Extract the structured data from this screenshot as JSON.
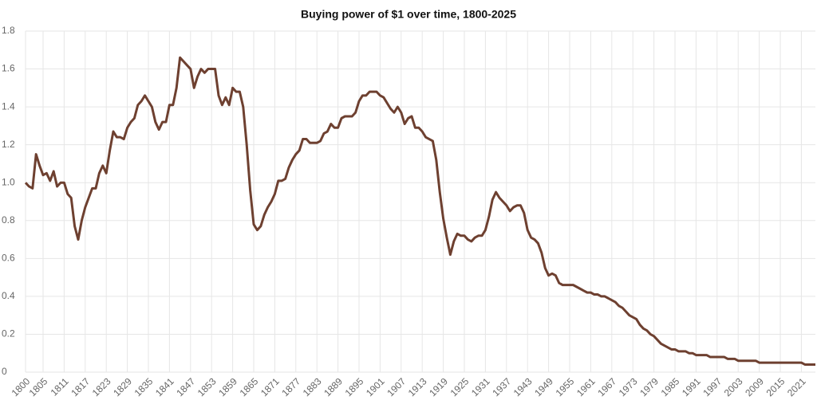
{
  "chart_data": {
    "type": "line",
    "title": "Buying power of $1 over time, 1800-2025",
    "x": [
      1800,
      1801,
      1802,
      1803,
      1804,
      1805,
      1806,
      1807,
      1808,
      1809,
      1810,
      1811,
      1812,
      1813,
      1814,
      1815,
      1816,
      1817,
      1818,
      1819,
      1820,
      1821,
      1822,
      1823,
      1824,
      1825,
      1826,
      1827,
      1828,
      1829,
      1830,
      1831,
      1832,
      1833,
      1834,
      1835,
      1836,
      1837,
      1838,
      1839,
      1840,
      1841,
      1842,
      1843,
      1844,
      1845,
      1846,
      1847,
      1848,
      1849,
      1850,
      1851,
      1852,
      1853,
      1854,
      1855,
      1856,
      1857,
      1858,
      1859,
      1860,
      1861,
      1862,
      1863,
      1864,
      1865,
      1866,
      1867,
      1868,
      1869,
      1870,
      1871,
      1872,
      1873,
      1874,
      1875,
      1876,
      1877,
      1878,
      1879,
      1880,
      1881,
      1882,
      1883,
      1884,
      1885,
      1886,
      1887,
      1888,
      1889,
      1890,
      1891,
      1892,
      1893,
      1894,
      1895,
      1896,
      1897,
      1898,
      1899,
      1900,
      1901,
      1902,
      1903,
      1904,
      1905,
      1906,
      1907,
      1908,
      1909,
      1910,
      1911,
      1912,
      1913,
      1914,
      1915,
      1916,
      1917,
      1918,
      1919,
      1920,
      1921,
      1922,
      1923,
      1924,
      1925,
      1926,
      1927,
      1928,
      1929,
      1930,
      1931,
      1932,
      1933,
      1934,
      1935,
      1936,
      1937,
      1938,
      1939,
      1940,
      1941,
      1942,
      1943,
      1944,
      1945,
      1946,
      1947,
      1948,
      1949,
      1950,
      1951,
      1952,
      1953,
      1954,
      1955,
      1956,
      1957,
      1958,
      1959,
      1960,
      1961,
      1962,
      1963,
      1964,
      1965,
      1966,
      1967,
      1968,
      1969,
      1970,
      1971,
      1972,
      1973,
      1974,
      1975,
      1976,
      1977,
      1978,
      1979,
      1980,
      1981,
      1982,
      1983,
      1984,
      1985,
      1986,
      1987,
      1988,
      1989,
      1990,
      1991,
      1992,
      1993,
      1994,
      1995,
      1996,
      1997,
      1998,
      1999,
      2000,
      2001,
      2002,
      2003,
      2004,
      2005,
      2006,
      2007,
      2008,
      2009,
      2010,
      2011,
      2012,
      2013,
      2014,
      2015,
      2016,
      2017,
      2018,
      2019,
      2020,
      2021,
      2022,
      2023,
      2024,
      2025
    ],
    "series": [
      {
        "color": "#6e4030",
        "values": [
          1.0,
          0.98,
          0.97,
          1.15,
          1.09,
          1.04,
          1.05,
          1.01,
          1.06,
          0.98,
          1.0,
          1.0,
          0.94,
          0.92,
          0.77,
          0.7,
          0.8,
          0.87,
          0.92,
          0.97,
          0.97,
          1.05,
          1.09,
          1.05,
          1.17,
          1.27,
          1.24,
          1.24,
          1.23,
          1.29,
          1.32,
          1.34,
          1.41,
          1.43,
          1.46,
          1.43,
          1.4,
          1.32,
          1.28,
          1.32,
          1.32,
          1.41,
          1.41,
          1.5,
          1.66,
          1.64,
          1.62,
          1.6,
          1.5,
          1.56,
          1.6,
          1.58,
          1.6,
          1.6,
          1.6,
          1.46,
          1.41,
          1.45,
          1.41,
          1.5,
          1.48,
          1.48,
          1.4,
          1.2,
          0.96,
          0.78,
          0.75,
          0.77,
          0.83,
          0.87,
          0.9,
          0.94,
          1.01,
          1.01,
          1.02,
          1.08,
          1.12,
          1.15,
          1.17,
          1.23,
          1.23,
          1.21,
          1.21,
          1.21,
          1.22,
          1.26,
          1.27,
          1.31,
          1.29,
          1.29,
          1.34,
          1.35,
          1.35,
          1.35,
          1.37,
          1.43,
          1.46,
          1.46,
          1.48,
          1.48,
          1.48,
          1.46,
          1.45,
          1.42,
          1.39,
          1.37,
          1.4,
          1.37,
          1.31,
          1.34,
          1.35,
          1.29,
          1.29,
          1.27,
          1.24,
          1.23,
          1.22,
          1.12,
          0.95,
          0.81,
          0.71,
          0.62,
          0.69,
          0.73,
          0.72,
          0.72,
          0.7,
          0.69,
          0.71,
          0.72,
          0.72,
          0.75,
          0.82,
          0.91,
          0.95,
          0.92,
          0.9,
          0.88,
          0.85,
          0.87,
          0.88,
          0.88,
          0.84,
          0.75,
          0.71,
          0.7,
          0.68,
          0.63,
          0.55,
          0.51,
          0.52,
          0.51,
          0.47,
          0.46,
          0.46,
          0.46,
          0.46,
          0.45,
          0.44,
          0.43,
          0.42,
          0.42,
          0.41,
          0.41,
          0.4,
          0.4,
          0.39,
          0.38,
          0.37,
          0.35,
          0.34,
          0.32,
          0.3,
          0.29,
          0.28,
          0.25,
          0.23,
          0.22,
          0.2,
          0.19,
          0.17,
          0.15,
          0.14,
          0.13,
          0.12,
          0.12,
          0.11,
          0.11,
          0.11,
          0.1,
          0.1,
          0.09,
          0.09,
          0.09,
          0.09,
          0.08,
          0.08,
          0.08,
          0.08,
          0.08,
          0.07,
          0.07,
          0.07,
          0.06,
          0.06,
          0.06,
          0.06,
          0.06,
          0.06,
          0.05,
          0.05,
          0.05,
          0.05,
          0.05,
          0.05,
          0.05,
          0.05,
          0.05,
          0.05,
          0.05,
          0.05,
          0.05,
          0.04,
          0.04,
          0.04,
          0.04
        ]
      }
    ],
    "xlim": [
      1800,
      2025
    ],
    "xticks": [
      1800,
      1805,
      1811,
      1817,
      1823,
      1829,
      1835,
      1841,
      1847,
      1853,
      1859,
      1865,
      1871,
      1877,
      1883,
      1889,
      1895,
      1901,
      1907,
      1913,
      1919,
      1925,
      1931,
      1937,
      1943,
      1949,
      1955,
      1961,
      1967,
      1973,
      1979,
      1985,
      1991,
      1997,
      2003,
      2009,
      2015,
      2021
    ],
    "ylim": [
      0,
      1.8
    ],
    "yticks": [
      0,
      0.2,
      0.4,
      0.6,
      0.8,
      {
        "value": 1,
        "label": "1.0"
      },
      1.2,
      1.4,
      1.6,
      1.8
    ],
    "grid": true
  }
}
